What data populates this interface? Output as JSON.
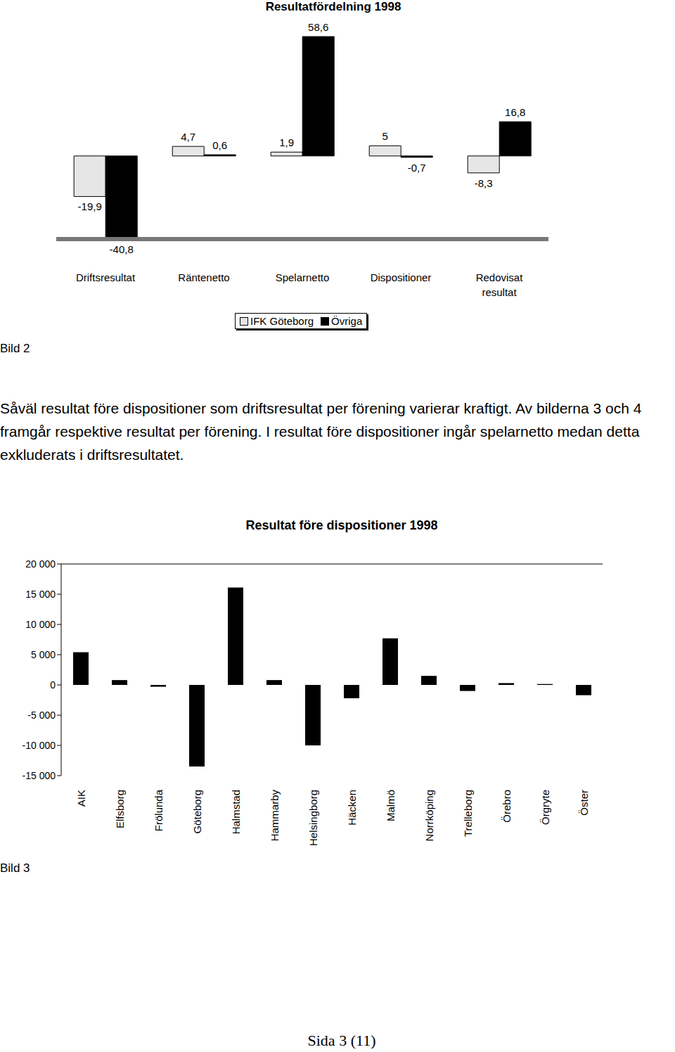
{
  "chart_data": [
    {
      "type": "bar",
      "title": "Resultatfördelning 1998",
      "categories": [
        "Driftsresultat",
        "Räntenetto",
        "Spelarnetto",
        "Dispositioner",
        "Redovisat resultat"
      ],
      "series": [
        {
          "name": "IFK Göteborg",
          "color": "#e6e6e6",
          "values": [
            -19.9,
            4.7,
            1.9,
            5,
            -8.3
          ],
          "value_labels": [
            "-19,9",
            "4,7",
            "1,9",
            "5",
            "-8,3"
          ]
        },
        {
          "name": "Övriga",
          "color": "#000000",
          "values": [
            -40.8,
            0.6,
            58.6,
            -0.7,
            16.8
          ],
          "value_labels": [
            "-40,8",
            "0,6",
            "58,6",
            "-0,7",
            "16,8"
          ]
        }
      ],
      "data_labels": true,
      "tick_labels": "x",
      "legend": "bottom",
      "grid": false,
      "caption": "Bild 2"
    },
    {
      "type": "bar",
      "title": "Resultat före dispositioner 1998",
      "categories": [
        "AIK",
        "Elfsborg",
        "Frölunda",
        "Göteborg",
        "Halmstad",
        "Hammarby",
        "Helsingborg",
        "Häcken",
        "Malmö",
        "Norrköping",
        "Trelleborg",
        "Örebro",
        "Örgryte",
        "Öster"
      ],
      "values": [
        5400,
        800,
        -300,
        -13500,
        16100,
        800,
        -10000,
        -2200,
        7700,
        1500,
        -1000,
        300,
        150,
        -1700
      ],
      "color": "#000000",
      "ylim": [
        -15000,
        20000
      ],
      "yticks": [
        {
          "value": -15000,
          "label": "-15 000"
        },
        {
          "value": -10000,
          "label": "-10 000"
        },
        {
          "value": -5000,
          "label": "-5 000"
        },
        0,
        {
          "value": 5000,
          "label": "5 000"
        },
        {
          "value": 10000,
          "label": "10 000"
        },
        {
          "value": 15000,
          "label": "15 000"
        },
        {
          "value": 20000,
          "label": "20 000"
        }
      ],
      "grid": false,
      "caption": "Bild 3"
    }
  ],
  "paragraph": "Såväl resultat före dispositioner som driftsresultat per förening varierar kraftigt. Av bilderna 3 och 4 framgår respektive resultat per förening. I resultat före dispositioner ingår spelarnetto medan detta exkluderats i driftsresultatet.",
  "footer": "Sida 3 (11)"
}
